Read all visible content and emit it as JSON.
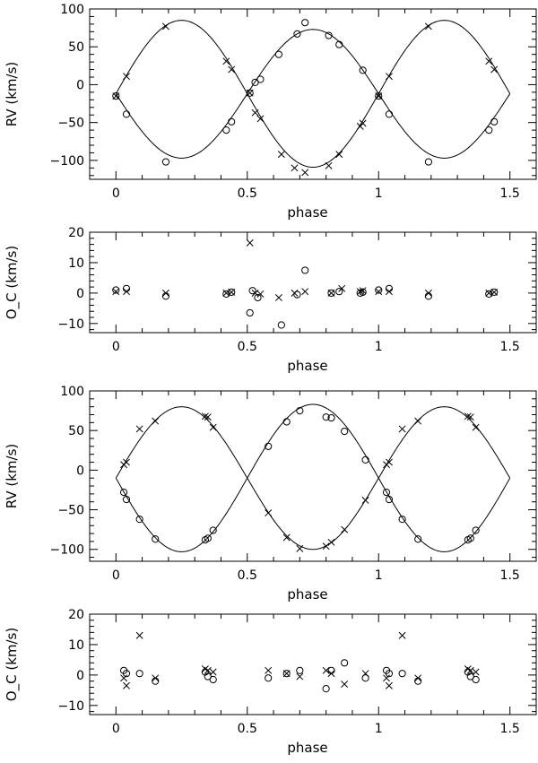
{
  "chart_data": [
    {
      "type": "scatter",
      "xlabel": "phase",
      "ylabel": "RV  (km/s)",
      "xlim": [
        -0.1,
        1.6
      ],
      "ylim": [
        -125,
        100
      ],
      "xticks": [
        0,
        0.5,
        1,
        1.5
      ],
      "xtick_labels": [
        "0",
        "0.5",
        "1",
        "1.5"
      ],
      "yticks": [
        -100,
        -50,
        0,
        50,
        100
      ],
      "ytick_labels": [
        "−100",
        "−50",
        "0",
        "50",
        "100"
      ],
      "grid": false,
      "curves": [
        {
          "name": "",
          "gamma": -12,
          "K": 97,
          "phase_shift": 0,
          "x_range": [
            0,
            1.5
          ]
        },
        {
          "name": "",
          "gamma": -12,
          "K": -85,
          "phase_shift": 0,
          "x_range": [
            0,
            1.5
          ]
        }
      ],
      "series": [
        {
          "name": "",
          "marker": "circle",
          "x": [
            0.0,
            0.04,
            0.19,
            0.42,
            0.44,
            0.51,
            0.53,
            0.55,
            0.62,
            0.69,
            0.72,
            0.81,
            0.85,
            0.94,
            1.0,
            1.04,
            1.19,
            1.42,
            1.44
          ],
          "y": [
            -15,
            -39,
            -102,
            -60,
            -49,
            -11,
            3,
            7,
            40,
            67,
            82,
            65,
            53,
            19,
            -15,
            -39,
            -102,
            -60,
            -49
          ]
        },
        {
          "name": "",
          "marker": "x",
          "x": [
            0.0,
            0.04,
            0.19,
            0.42,
            0.44,
            0.51,
            0.53,
            0.55,
            0.63,
            0.68,
            0.72,
            0.81,
            0.85,
            0.93,
            0.94,
            1.0,
            1.04,
            1.19,
            1.42,
            1.44
          ],
          "y": [
            -15,
            11,
            77,
            31,
            20,
            -11,
            -37,
            -45,
            -92,
            -110,
            -116,
            -107,
            -92,
            -55,
            -51,
            -15,
            11,
            77,
            31,
            20
          ]
        }
      ]
    },
    {
      "type": "scatter",
      "xlabel": "phase",
      "ylabel": "O_C  (km/s)",
      "xlim": [
        -0.1,
        1.6
      ],
      "ylim": [
        -13,
        20
      ],
      "xticks": [
        0,
        0.5,
        1,
        1.5
      ],
      "xtick_labels": [
        "0",
        "0.5",
        "1",
        "1.5"
      ],
      "yticks": [
        -10,
        0,
        10,
        20
      ],
      "ytick_labels": [
        "−10",
        "0",
        "10",
        "20"
      ],
      "grid": false,
      "series": [
        {
          "name": "",
          "marker": "circle",
          "x": [
            0.0,
            0.04,
            0.19,
            0.42,
            0.44,
            0.51,
            0.52,
            0.54,
            0.63,
            0.69,
            0.72,
            0.82,
            0.85,
            0.93,
            0.94,
            1.0,
            1.04,
            1.19,
            1.42,
            1.44
          ],
          "y": [
            1,
            1.5,
            -1,
            -0.3,
            0.3,
            -6.5,
            0.8,
            -1.5,
            -10.5,
            -0.5,
            7.5,
            0,
            0.5,
            0,
            0.3,
            1,
            1.5,
            -1,
            -0.3,
            0.3
          ]
        },
        {
          "name": "",
          "marker": "x",
          "x": [
            0.0,
            0.04,
            0.19,
            0.42,
            0.44,
            0.51,
            0.53,
            0.55,
            0.62,
            0.68,
            0.72,
            0.82,
            0.86,
            0.93,
            0.94,
            1.0,
            1.04,
            1.19,
            1.42,
            1.44
          ],
          "y": [
            0.5,
            0.5,
            0,
            0,
            0.3,
            16.5,
            0,
            -0.3,
            -1.5,
            0,
            0.5,
            0,
            1.5,
            0.5,
            0.8,
            0.5,
            0.5,
            0,
            0,
            0.3
          ]
        }
      ]
    },
    {
      "type": "scatter",
      "xlabel": "phase",
      "ylabel": "RV  (km/s)",
      "xlim": [
        -0.1,
        1.6
      ],
      "ylim": [
        -115,
        100
      ],
      "xticks": [
        0,
        0.5,
        1,
        1.5
      ],
      "xtick_labels": [
        "0",
        "0.5",
        "1",
        "1.5"
      ],
      "yticks": [
        -100,
        -50,
        0,
        50,
        100
      ],
      "ytick_labels": [
        "−100",
        "−50",
        "0",
        "50",
        "100"
      ],
      "grid": false,
      "curves": [
        {
          "name": "",
          "gamma": -10,
          "K": 90,
          "phase_shift": 0,
          "x_range": [
            0,
            1.5
          ]
        },
        {
          "name": "",
          "gamma": -10,
          "K": -93,
          "phase_shift": 0,
          "x_range": [
            0,
            1.5
          ]
        }
      ],
      "series": [
        {
          "name": "",
          "marker": "circle",
          "x": [
            0.03,
            0.04,
            0.09,
            0.15,
            0.34,
            0.35,
            0.37,
            0.58,
            0.65,
            0.7,
            0.8,
            0.82,
            0.87,
            0.95,
            1.03,
            1.04,
            1.09,
            1.15,
            1.34,
            1.35,
            1.37
          ],
          "y": [
            -28,
            -37,
            -62,
            -87,
            -88,
            -86,
            -76,
            30,
            61,
            75,
            67,
            66,
            49,
            13,
            -28,
            -37,
            -62,
            -87,
            -88,
            -86,
            -76
          ]
        },
        {
          "name": "",
          "marker": "x",
          "x": [
            0.03,
            0.04,
            0.09,
            0.15,
            0.34,
            0.35,
            0.37,
            0.58,
            0.65,
            0.7,
            0.8,
            0.82,
            0.87,
            0.95,
            1.03,
            1.04,
            1.09,
            1.15,
            1.34,
            1.35,
            1.37
          ],
          "y": [
            7,
            10,
            52,
            62,
            68,
            67,
            54,
            -54,
            -85,
            -99,
            -96,
            -91,
            -75,
            -38,
            7,
            10,
            52,
            62,
            68,
            67,
            54
          ]
        }
      ]
    },
    {
      "type": "scatter",
      "xlabel": "phase",
      "ylabel": "O_C  (km/s)",
      "xlim": [
        -0.1,
        1.6
      ],
      "ylim": [
        -13,
        20
      ],
      "xticks": [
        0,
        0.5,
        1,
        1.5
      ],
      "xtick_labels": [
        "0",
        "0.5",
        "1",
        "1.5"
      ],
      "yticks": [
        -10,
        0,
        10,
        20
      ],
      "ytick_labels": [
        "−10",
        "0",
        "10",
        "20"
      ],
      "grid": false,
      "series": [
        {
          "name": "",
          "marker": "circle",
          "x": [
            0.03,
            0.04,
            0.09,
            0.15,
            0.34,
            0.35,
            0.37,
            0.58,
            0.65,
            0.7,
            0.8,
            0.82,
            0.87,
            0.95,
            1.03,
            1.04,
            1.09,
            1.15,
            1.34,
            1.35,
            1.37
          ],
          "y": [
            1.5,
            0.5,
            0.5,
            -2,
            1,
            -0.5,
            -1.5,
            -1,
            0.5,
            1.5,
            -4.5,
            1.5,
            4,
            -1,
            1.5,
            0.5,
            0.5,
            -2,
            1,
            -0.5,
            -1.5
          ]
        },
        {
          "name": "",
          "marker": "x",
          "x": [
            0.03,
            0.04,
            0.09,
            0.15,
            0.34,
            0.35,
            0.37,
            0.58,
            0.65,
            0.7,
            0.8,
            0.82,
            0.87,
            0.95,
            1.03,
            1.04,
            1.09,
            1.15,
            1.34,
            1.35,
            1.37
          ],
          "y": [
            -1,
            -3.5,
            13,
            -1,
            2,
            1.5,
            1,
            1.5,
            0.5,
            -0.5,
            1.5,
            0.5,
            -3,
            0.5,
            -1,
            -3.5,
            13,
            -1,
            2,
            1.5,
            1
          ]
        }
      ]
    }
  ]
}
